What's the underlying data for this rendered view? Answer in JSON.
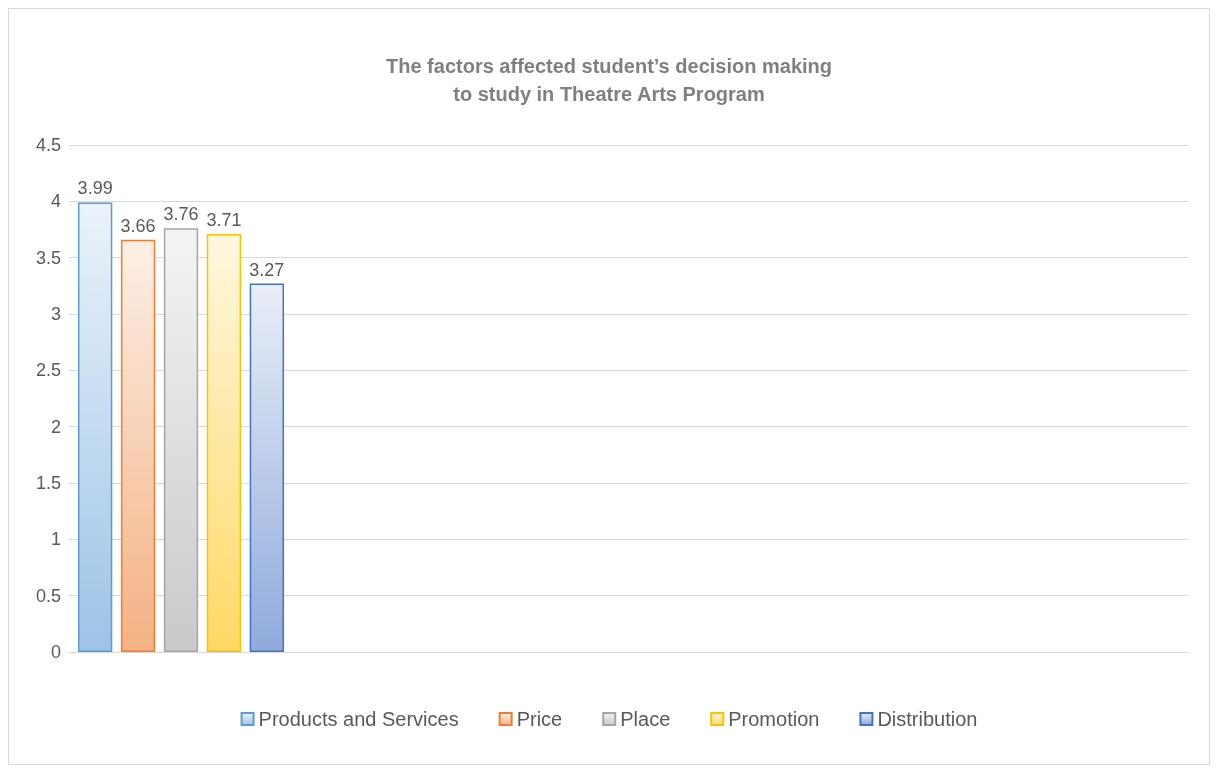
{
  "chart_data": {
    "type": "bar",
    "title": "The factors affected student’s decision making\nto study in Theatre Arts Program",
    "categories": [
      null,
      null,
      null,
      null,
      null
    ],
    "series": [
      {
        "name": "Products and Services",
        "color": "#5b9bd5",
        "values": [
          3.99,
          null,
          null,
          null,
          null
        ]
      },
      {
        "name": "Price",
        "color": "#ed7d31",
        "values": [
          3.66,
          null,
          null,
          null,
          null
        ]
      },
      {
        "name": "Place",
        "color": "#a5a5a5",
        "values": [
          3.76,
          null,
          null,
          null,
          null
        ]
      },
      {
        "name": "Promotion",
        "color": "#ffc000",
        "values": [
          3.71,
          null,
          null,
          null,
          null
        ]
      },
      {
        "name": "Distribution",
        "color": "#4472c4",
        "values": [
          3.27,
          null,
          null,
          null,
          null
        ]
      }
    ],
    "ylim": [
      0,
      4.5
    ],
    "yticks": [
      0,
      0.5,
      1,
      1.5,
      2,
      2.5,
      3,
      3.5,
      4,
      4.5
    ],
    "grid": "y",
    "legend": "bottom",
    "data_labels": true
  }
}
